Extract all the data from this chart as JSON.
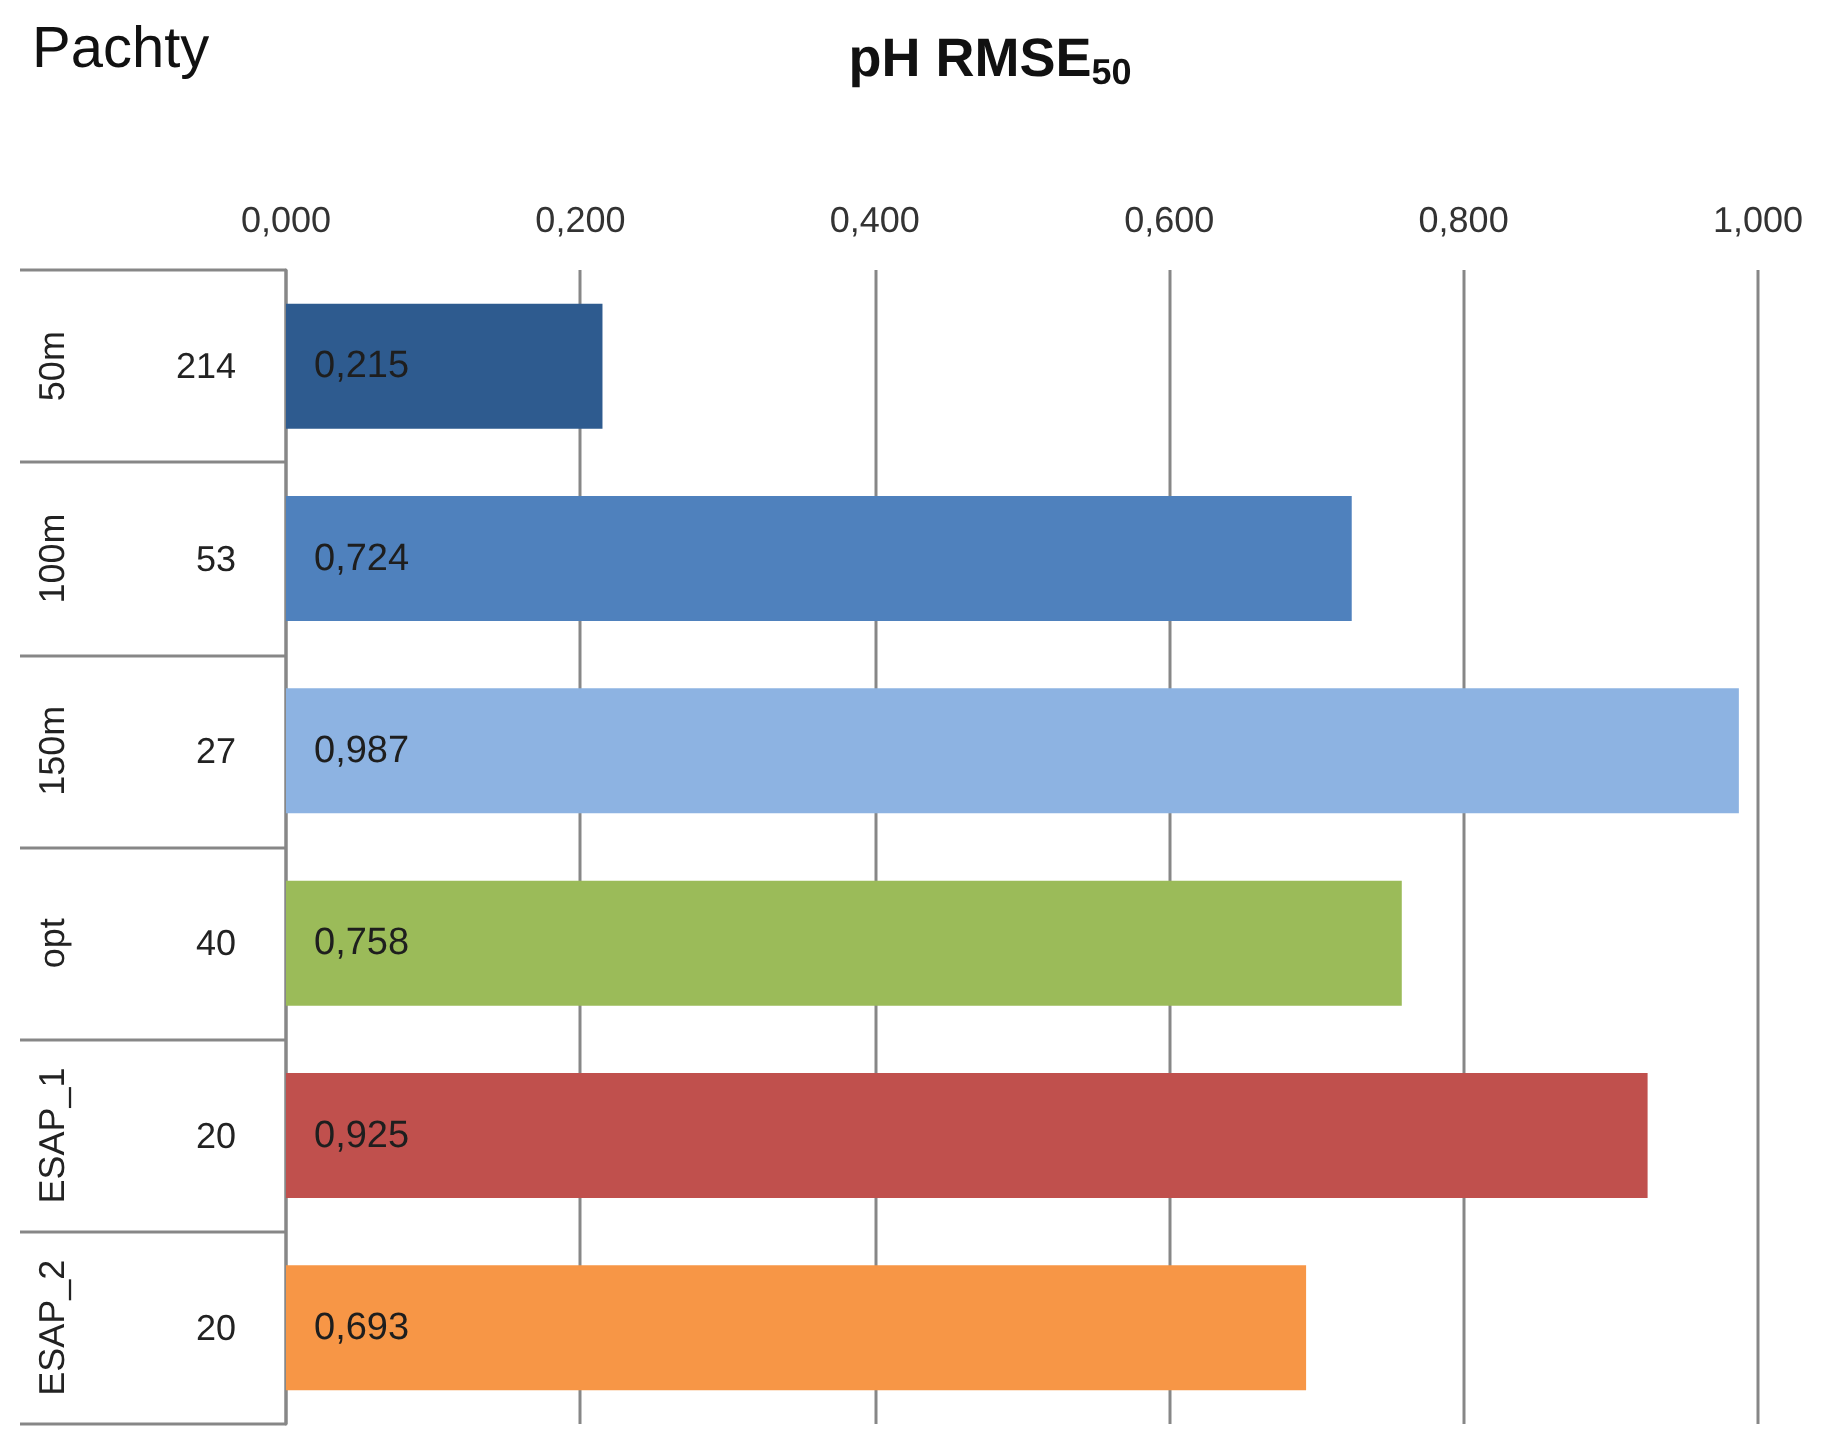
{
  "chart_data": {
    "type": "bar",
    "orientation": "horizontal",
    "title": "pH RMSE$_{50}$",
    "categories": [
      "50m",
      "100m",
      "150m",
      "opt",
      "ESAP_1",
      "ESAP_2"
    ],
    "values": [
      0.215,
      0.724,
      0.987,
      0.758,
      0.925,
      0.693
    ],
    "colors": [
      "#2e5b8f",
      "#4f81bd",
      "#8db3e2",
      "#9bbb59",
      "#c0504d",
      "#f79646"
    ],
    "value_labels": [
      "0,215",
      "0,724",
      "0,987",
      "0,758",
      "0,925",
      "0,693"
    ],
    "xlim": [
      0,
      1
    ],
    "xticks": [
      {
        "value": 0,
        "label": "0,000"
      },
      {
        "value": 0.2,
        "label": "0,200"
      },
      {
        "value": 0.4,
        "label": "0,400"
      },
      {
        "value": 0.6,
        "label": "0,600"
      },
      {
        "value": 0.8,
        "label": "0,800"
      },
      {
        "value": 1,
        "label": "1,000"
      }
    ],
    "grid": "x",
    "annotations": [
      "Pachty",
      "214",
      "53",
      "27",
      "40",
      "20",
      "20"
    ]
  }
}
